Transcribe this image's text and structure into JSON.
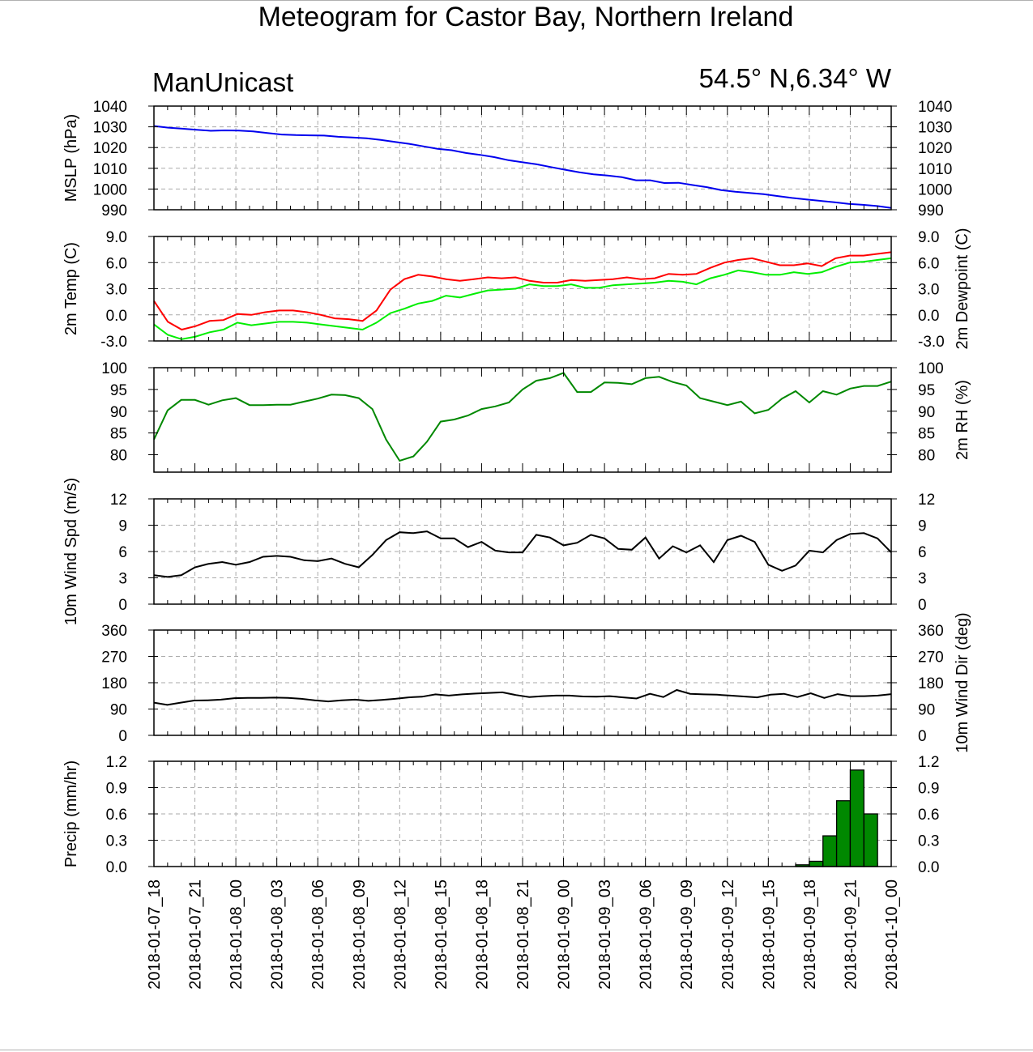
{
  "title": "Meteogram for Castor Bay, Northern Ireland",
  "model_label": "ManUnicast",
  "location_label": "54.5° N,6.34° W",
  "x_tick_labels": [
    "2018-01-07_18",
    "2018-01-07_21",
    "2018-01-08_00",
    "2018-01-08_03",
    "2018-01-08_06",
    "2018-01-08_09",
    "2018-01-08_12",
    "2018-01-08_15",
    "2018-01-08_18",
    "2018-01-08_21",
    "2018-01-09_00",
    "2018-01-09_03",
    "2018-01-09_06",
    "2018-01-09_09",
    "2018-01-09_12",
    "2018-01-09_15",
    "2018-01-09_18",
    "2018-01-09_21",
    "2018-01-10_00"
  ],
  "x_range_hours": [
    0,
    54
  ],
  "chart_data": [
    {
      "type": "line",
      "ylabel": "MSLP (hPa)",
      "ylabel_right": "",
      "ylim": [
        990,
        1040
      ],
      "yticks": [
        990,
        1000,
        1010,
        1020,
        1030,
        1040
      ],
      "tick_decimals": 0,
      "grid": true,
      "series": [
        {
          "color": "#0000ee",
          "values": [
            1030.4,
            1029.6,
            1029.1,
            1028.6,
            1028.1,
            1028.3,
            1028.2,
            1027.8,
            1027.0,
            1026.3,
            1026.0,
            1025.9,
            1025.8,
            1025.2,
            1024.9,
            1024.5,
            1023.7,
            1022.7,
            1021.8,
            1020.6,
            1019.4,
            1018.7,
            1017.4,
            1016.5,
            1015.4,
            1013.9,
            1012.9,
            1011.9,
            1010.6,
            1009.3,
            1008.1,
            1007.1,
            1006.5,
            1005.7,
            1004.2,
            1004.2,
            1002.9,
            1003.0,
            1001.9,
            1000.9,
            999.5,
            998.7,
            998.1,
            997.5,
            996.6,
            995.7,
            995.0,
            994.3,
            993.6,
            992.8,
            992.4,
            991.8,
            990.9
          ]
        }
      ]
    },
    {
      "type": "line",
      "ylabel": "2m Temp (C)",
      "ylabel_right": "2m Dewpoint (C)",
      "ylim": [
        -3,
        9
      ],
      "yticks": [
        -3,
        0,
        3,
        6,
        9
      ],
      "tick_decimals": 1,
      "grid": true,
      "series": [
        {
          "color": "#ff0000",
          "values": [
            1.6,
            -0.8,
            -1.7,
            -1.3,
            -0.7,
            -0.6,
            0.1,
            0.0,
            0.3,
            0.5,
            0.5,
            0.3,
            0.0,
            -0.4,
            -0.5,
            -0.7,
            0.5,
            2.9,
            4.1,
            4.6,
            4.4,
            4.1,
            3.9,
            4.1,
            4.3,
            4.2,
            4.3,
            3.9,
            3.7,
            3.7,
            4.0,
            3.9,
            4.0,
            4.1,
            4.3,
            4.1,
            4.2,
            4.7,
            4.6,
            4.7,
            5.4,
            6.0,
            6.3,
            6.5,
            6.1,
            5.7,
            5.7,
            5.9,
            5.6,
            6.5,
            6.8,
            6.8,
            7.0,
            7.2
          ]
        },
        {
          "color": "#00ee00",
          "values": [
            -1.1,
            -2.3,
            -2.8,
            -2.5,
            -2.0,
            -1.7,
            -0.9,
            -1.2,
            -1.0,
            -0.8,
            -0.8,
            -0.9,
            -1.1,
            -1.3,
            -1.5,
            -1.7,
            -0.9,
            0.2,
            0.7,
            1.3,
            1.6,
            2.2,
            2.0,
            2.4,
            2.8,
            2.9,
            3.0,
            3.5,
            3.3,
            3.3,
            3.5,
            3.1,
            3.1,
            3.4,
            3.5,
            3.6,
            3.7,
            3.9,
            3.8,
            3.5,
            4.2,
            4.6,
            5.1,
            4.9,
            4.6,
            4.6,
            4.9,
            4.7,
            4.9,
            5.5,
            6.0,
            6.1,
            6.3,
            6.5
          ]
        }
      ]
    },
    {
      "type": "line",
      "ylabel": "",
      "ylabel_right": "2m RH (%)",
      "ylim": [
        76,
        100
      ],
      "yticks": [
        80,
        85,
        90,
        95,
        100
      ],
      "tick_decimals": 0,
      "grid": false,
      "series": [
        {
          "color": "#008800",
          "values": [
            83.5,
            90.2,
            92.6,
            92.6,
            91.5,
            92.5,
            93.0,
            91.4,
            91.4,
            91.5,
            91.5,
            92.2,
            92.9,
            93.8,
            93.7,
            93.0,
            90.5,
            83.5,
            78.6,
            79.6,
            83.0,
            87.6,
            88.1,
            89.0,
            90.5,
            91.1,
            92.0,
            95.0,
            97.0,
            97.6,
            98.8,
            94.4,
            94.4,
            96.6,
            96.5,
            96.2,
            97.6,
            97.9,
            96.7,
            95.9,
            93.0,
            92.2,
            91.4,
            92.2,
            89.5,
            90.3,
            92.9,
            94.6,
            92.0,
            94.6,
            93.8,
            95.2,
            95.8,
            95.8,
            96.8
          ]
        }
      ]
    },
    {
      "type": "line",
      "ylabel": "10m Wind Spd (m/s)",
      "ylabel_right": "",
      "ylim": [
        0,
        12
      ],
      "yticks": [
        0,
        3,
        6,
        9,
        12
      ],
      "tick_decimals": 0,
      "grid": true,
      "series": [
        {
          "color": "#000000",
          "values": [
            3.3,
            3.1,
            3.3,
            4.2,
            4.6,
            4.8,
            4.5,
            4.8,
            5.4,
            5.5,
            5.4,
            5.0,
            4.9,
            5.2,
            4.6,
            4.2,
            5.6,
            7.3,
            8.2,
            8.1,
            8.3,
            7.5,
            7.5,
            6.5,
            7.1,
            6.1,
            5.9,
            5.9,
            7.9,
            7.6,
            6.7,
            7.0,
            7.9,
            7.5,
            6.3,
            6.2,
            7.6,
            5.2,
            6.6,
            5.9,
            6.7,
            4.8,
            7.3,
            7.8,
            7.1,
            4.5,
            3.8,
            4.4,
            6.1,
            5.9,
            7.3,
            8.0,
            8.1,
            7.5,
            5.9
          ]
        }
      ]
    },
    {
      "type": "line",
      "ylabel": "",
      "ylabel_right": "10m Wind Dir (deg)",
      "ylim": [
        0,
        360
      ],
      "yticks": [
        0,
        90,
        180,
        270,
        360
      ],
      "tick_decimals": 0,
      "grid": true,
      "series": [
        {
          "color": "#000000",
          "values": [
            112,
            104,
            112,
            119,
            120,
            122,
            127,
            128,
            128,
            129,
            128,
            125,
            120,
            116,
            120,
            122,
            118,
            121,
            125,
            130,
            132,
            140,
            136,
            140,
            143,
            145,
            147,
            138,
            131,
            134,
            136,
            136,
            133,
            132,
            134,
            130,
            126,
            142,
            131,
            155,
            142,
            140,
            139,
            136,
            133,
            130,
            139,
            142,
            131,
            144,
            128,
            141,
            134,
            134,
            136,
            141
          ]
        }
      ]
    },
    {
      "type": "bar",
      "ylabel": "Precip (mm/hr)",
      "ylabel_right": "",
      "ylim": [
        0,
        1.2
      ],
      "yticks": [
        0,
        0.3,
        0.6,
        0.9,
        1.2
      ],
      "tick_decimals": 1,
      "grid": true,
      "bar_color": "#008800",
      "bar_start_hour": 47,
      "bar_width_hours": 1,
      "values": [
        0.02,
        0.06,
        0.35,
        0.75,
        1.1,
        0.6
      ]
    }
  ]
}
